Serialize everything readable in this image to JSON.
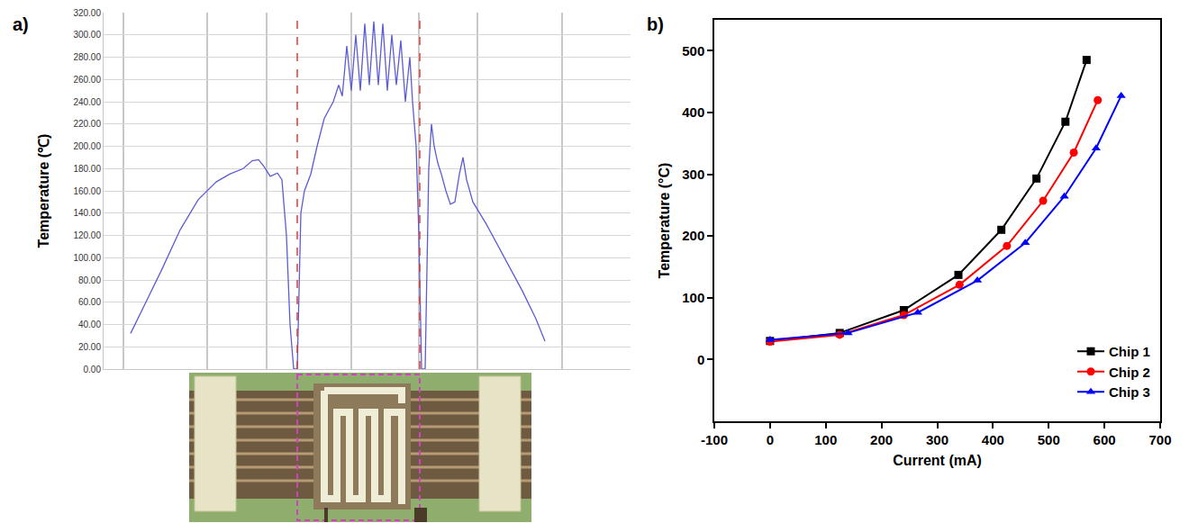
{
  "chart_data": [
    {
      "type": "line",
      "panel_label": "a)",
      "y_label": "Temperature (℃)",
      "color": "#5c5cd6",
      "x": [
        145,
        150,
        155,
        165,
        180,
        200,
        220,
        240,
        255,
        270,
        280,
        287,
        293,
        300,
        308,
        313,
        318,
        322,
        326,
        330,
        334,
        338,
        345,
        352,
        360,
        370,
        376,
        380,
        385,
        390,
        395,
        400,
        405,
        410,
        415,
        420,
        425,
        430,
        435,
        440,
        445,
        450,
        455,
        458,
        462,
        465,
        468,
        472,
        476,
        479,
        482,
        486,
        490,
        495,
        500,
        505,
        510,
        514,
        518,
        525,
        540,
        560,
        580,
        595,
        605
      ],
      "values": [
        32,
        40,
        48,
        65,
        90,
        125,
        152,
        168,
        175,
        180,
        187,
        188,
        182,
        173,
        176,
        170,
        120,
        40,
        0,
        0,
        140,
        160,
        175,
        200,
        225,
        240,
        255,
        245,
        290,
        250,
        300,
        250,
        310,
        255,
        312,
        255,
        310,
        250,
        300,
        255,
        295,
        240,
        280,
        240,
        200,
        120,
        0,
        0,
        180,
        220,
        200,
        185,
        175,
        160,
        148,
        150,
        175,
        190,
        170,
        150,
        130,
        100,
        70,
        45,
        25
      ],
      "xlim": [
        115,
        700
      ],
      "xticks": [
        137,
        230,
        296,
        390,
        465,
        530,
        624
      ],
      "ylim": [
        0,
        320
      ],
      "yticks": [
        {
          "value": 0,
          "label": "0.00"
        },
        {
          "value": 20,
          "label": "20.00"
        },
        {
          "value": 40,
          "label": "40.00"
        },
        {
          "value": 60,
          "label": "60.00"
        },
        {
          "value": 80,
          "label": "80.00"
        },
        {
          "value": 100,
          "label": "100.00"
        },
        {
          "value": 120,
          "label": "120.00"
        },
        {
          "value": 140,
          "label": "140.00"
        },
        {
          "value": 160,
          "label": "160.00"
        },
        {
          "value": 180,
          "label": "180.00"
        },
        {
          "value": 200,
          "label": "200.00"
        },
        {
          "value": 220,
          "label": "220.00"
        },
        {
          "value": 240,
          "label": "240.00"
        },
        {
          "value": 260,
          "label": "260.00"
        },
        {
          "value": 280,
          "label": "280.00"
        },
        {
          "value": 300,
          "label": "300.00"
        },
        {
          "value": 320,
          "label": "320.00"
        }
      ],
      "grid": true,
      "tick_labels": "y",
      "vlines": [
        330,
        466
      ]
    },
    {
      "type": "line",
      "panel_label": "b)",
      "x_label": "Current (mA)",
      "y_label": "Temperature (°C)",
      "xlim": [
        -100,
        700
      ],
      "xticks": [
        -100,
        0,
        100,
        200,
        300,
        400,
        500,
        600,
        700
      ],
      "ylim": [
        -100,
        550
      ],
      "yticks": [
        0,
        100,
        200,
        300,
        400,
        500
      ],
      "grid": false,
      "legend": "lower right",
      "series": [
        {
          "name": "Chip 1",
          "color": "#000000",
          "marker": "square",
          "x": [
            0,
            125,
            240,
            338,
            415,
            478,
            530,
            568
          ],
          "values": [
            30,
            43,
            80,
            137,
            210,
            293,
            385,
            485
          ]
        },
        {
          "name": "Chip 2",
          "color": "#ff0000",
          "marker": "circle",
          "x": [
            0,
            125,
            240,
            340,
            425,
            490,
            545,
            588
          ],
          "values": [
            29,
            40,
            72,
            121,
            184,
            257,
            335,
            420
          ]
        },
        {
          "name": "Chip 3",
          "color": "#0000ff",
          "marker": "triangle",
          "x": [
            0,
            140,
            265,
            372,
            458,
            528,
            585,
            630
          ],
          "values": [
            32,
            43,
            76,
            128,
            189,
            264,
            342,
            427
          ]
        }
      ]
    }
  ]
}
